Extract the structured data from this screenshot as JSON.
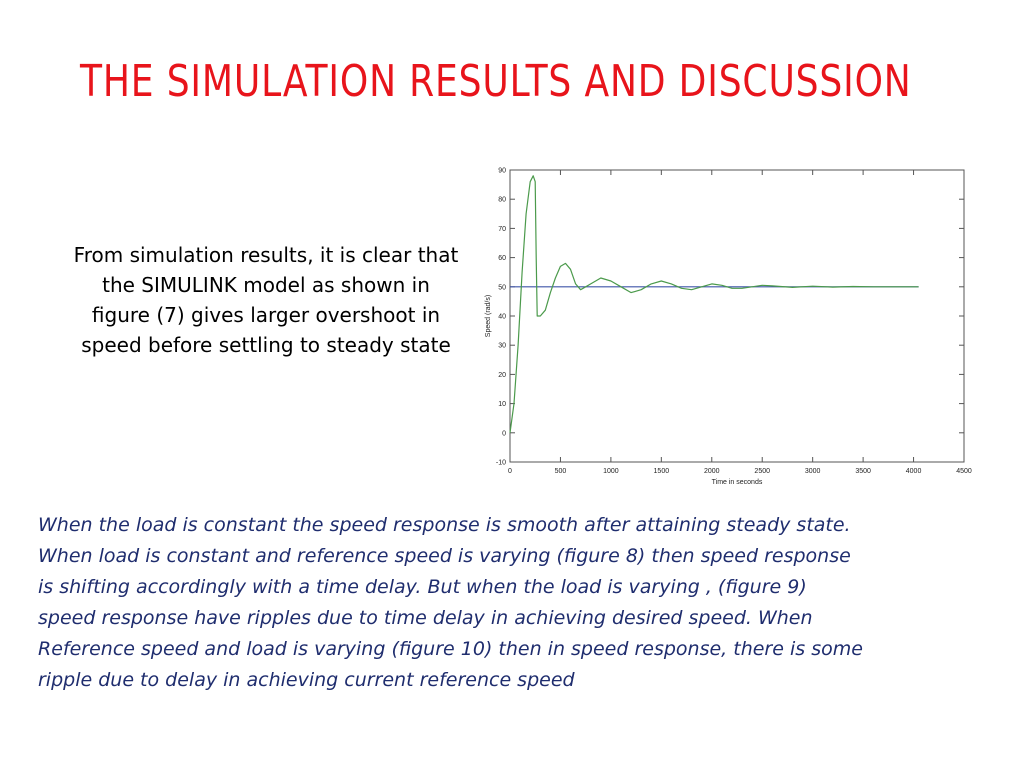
{
  "slide": {
    "title": "THE SIMULATION RESULTS AND DISCUSSION",
    "intro_lines": [
      "From simulation results, it is clear that",
      "the SIMULINK model as shown in",
      "figure (7) gives larger overshoot in",
      "speed before settling to steady state"
    ],
    "body_lines": [
      "When the load is constant the speed response is smooth after attaining steady state.",
      "When load is constant and reference speed is varying (figure 8) then speed response",
      "is shifting accordingly with a time delay. But when the load is varying , (figure 9)",
      "speed response have ripples due to time delay in achieving desired speed. When",
      "Reference speed and load is varying (figure 10) then in speed response, there is some",
      "ripple due to delay in achieving current reference speed"
    ],
    "colors": {
      "title": "#e8141b",
      "body_text": "#1f2d6e"
    }
  },
  "chart_data": {
    "type": "line",
    "title": "",
    "xlabel": "Time in seconds",
    "ylabel": "Speed (rad/s)",
    "xlim": [
      0,
      4500
    ],
    "ylim": [
      -10,
      90
    ],
    "x_ticks": [
      "0",
      "500",
      "1000",
      "1500",
      "2000",
      "2500",
      "3000",
      "3500",
      "4000",
      "4500"
    ],
    "y_ticks": [
      "-10",
      "0",
      "10",
      "20",
      "30",
      "40",
      "50",
      "60",
      "70",
      "80",
      "90"
    ],
    "grid": false,
    "series": [
      {
        "color": "#3f55a8",
        "x": [
          0,
          4050
        ],
        "y": [
          50,
          50
        ]
      },
      {
        "color": "#4b9a4b",
        "x": [
          0,
          40,
          80,
          120,
          160,
          200,
          230,
          250,
          260,
          270,
          300,
          350,
          400,
          450,
          500,
          550,
          600,
          650,
          700,
          750,
          800,
          900,
          1000,
          1100,
          1200,
          1300,
          1400,
          1500,
          1600,
          1700,
          1800,
          1900,
          2000,
          2100,
          2200,
          2300,
          2400,
          2500,
          2600,
          2800,
          3000,
          3200,
          3400,
          3600,
          3800,
          4050
        ],
        "y": [
          0,
          10,
          30,
          55,
          75,
          86,
          88,
          86,
          60,
          40,
          40,
          42,
          48,
          53,
          57,
          58,
          56,
          51,
          49,
          50,
          51,
          53,
          52,
          50,
          48,
          49,
          51,
          52,
          51,
          49.5,
          49,
          50,
          51,
          50.5,
          49.5,
          49.5,
          50,
          50.5,
          50.3,
          49.8,
          50.2,
          49.9,
          50.1,
          50,
          50,
          50
        ]
      }
    ]
  }
}
